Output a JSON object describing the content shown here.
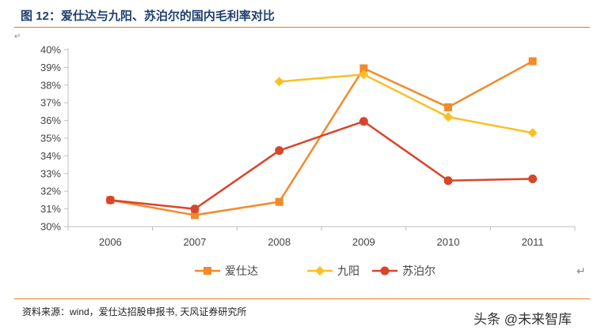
{
  "figure": {
    "title": "图 12：爱仕达与九阳、苏泊尔的国内毛利率对比",
    "source": "资料来源：wind，爱仕达招股申报书, 天风证券研究所",
    "watermark": "头条 @未来智库"
  },
  "chart_data": {
    "type": "line",
    "title": "",
    "xlabel": "",
    "ylabel": "",
    "x": [
      "2006",
      "2007",
      "2008",
      "2009",
      "2010",
      "2011"
    ],
    "ylim": [
      30,
      40
    ],
    "yticks": [
      "30%",
      "31%",
      "32%",
      "33%",
      "34%",
      "35%",
      "36%",
      "37%",
      "38%",
      "39%",
      "40%"
    ],
    "grid": false,
    "legend_position": "bottom",
    "series": [
      {
        "name": "爱仕达",
        "color": "#f28a2a",
        "marker": "square",
        "values": [
          31.5,
          30.65,
          31.4,
          38.95,
          36.75,
          39.35
        ]
      },
      {
        "name": "九阳",
        "color": "#fbbf26",
        "marker": "diamond",
        "values": [
          null,
          null,
          38.2,
          38.6,
          36.2,
          35.3
        ]
      },
      {
        "name": "苏泊尔",
        "color": "#d8452a",
        "marker": "circle",
        "values": [
          31.5,
          31.0,
          34.3,
          35.95,
          32.6,
          32.7
        ]
      }
    ]
  }
}
